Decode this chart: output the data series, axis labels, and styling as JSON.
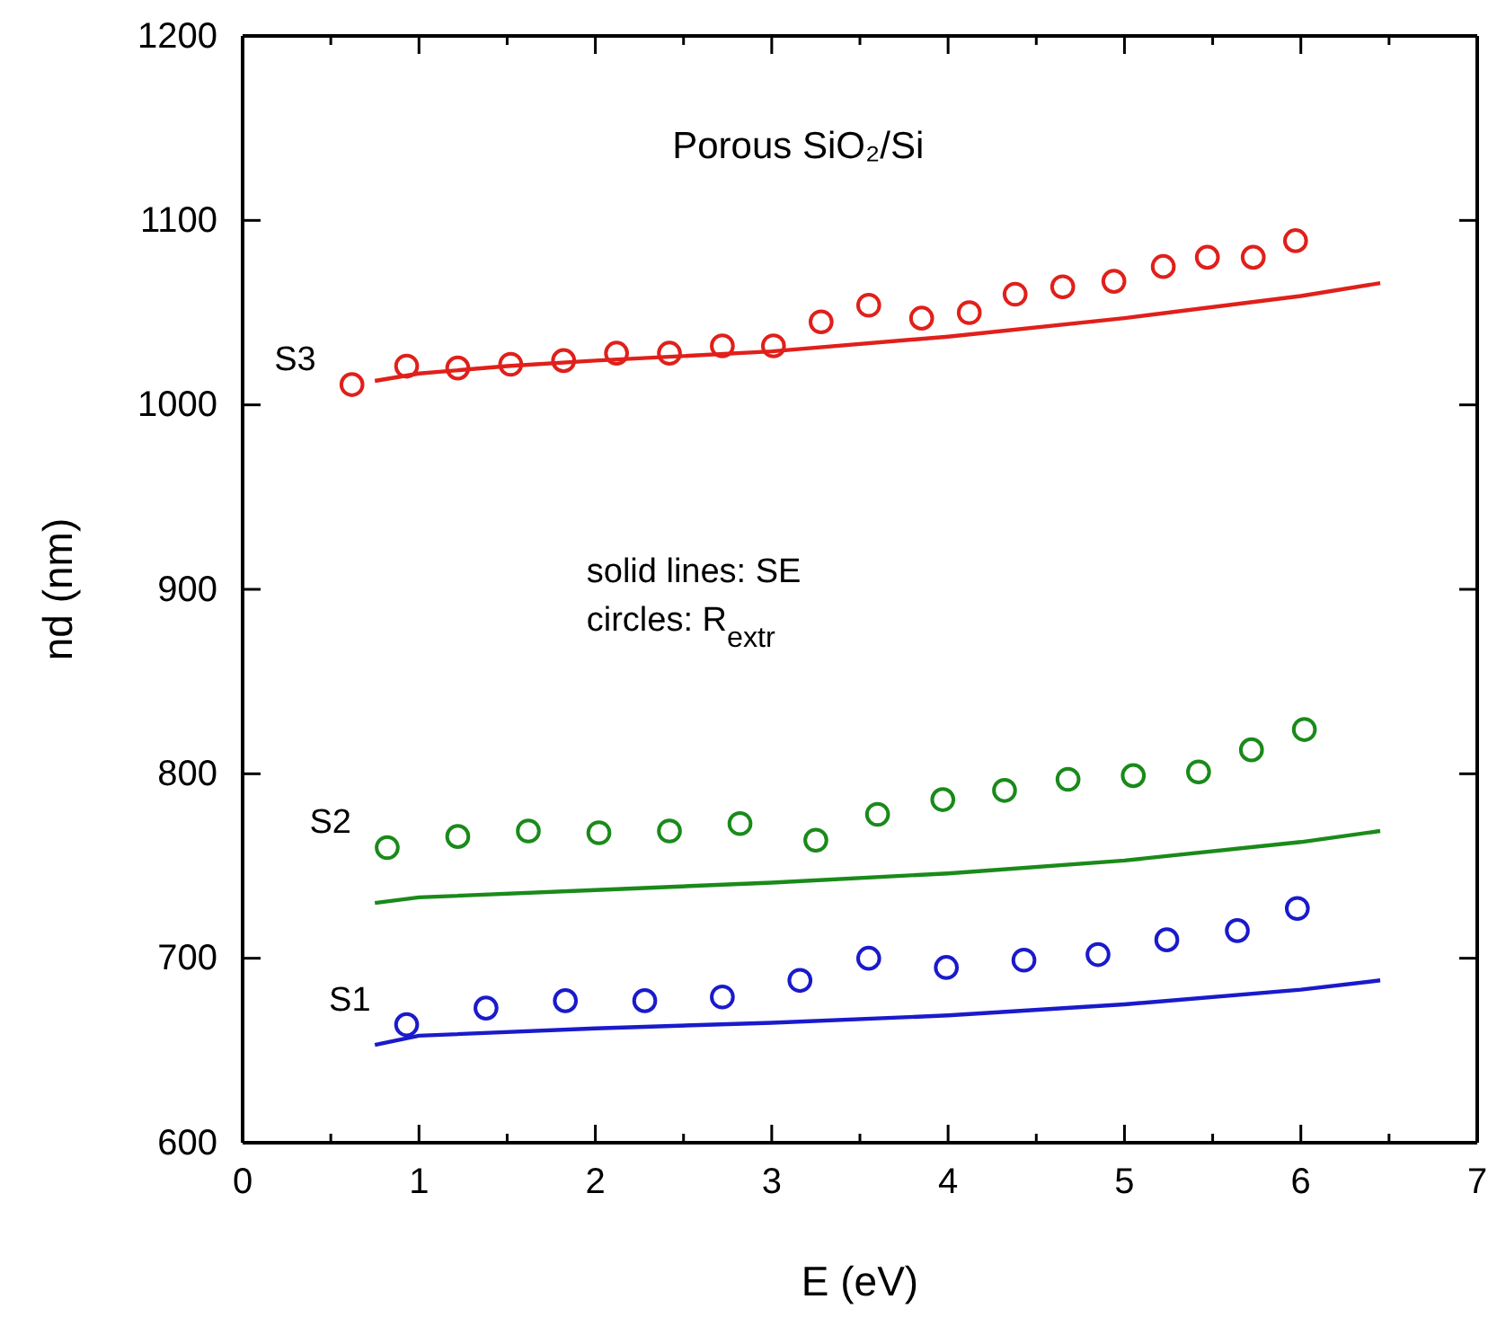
{
  "chart_data": {
    "type": "line",
    "title": "Porous SiO₂/Si",
    "xlabel": "E (eV)",
    "ylabel": "nd (nm)",
    "xlim": [
      0,
      7
    ],
    "ylim": [
      600,
      1200
    ],
    "xticks": [
      0,
      {
        "value": 0.5,
        "label": null
      },
      1,
      {
        "value": 1.5,
        "label": null
      },
      2,
      {
        "value": 2.5,
        "label": null
      },
      3,
      {
        "value": 3.5,
        "label": null
      },
      4,
      {
        "value": 4.5,
        "label": null
      },
      5,
      {
        "value": 5.5,
        "label": null
      },
      6,
      {
        "value": 6.5,
        "label": null
      },
      7
    ],
    "yticks": [
      600,
      700,
      800,
      900,
      1000,
      1100,
      1200
    ],
    "grid": false,
    "legend": false,
    "line_style": "solid",
    "annotations": [
      "solid lines: SE",
      "circles: R$_{extr}$"
    ],
    "series": [
      {
        "type": "scatter",
        "name": "S3",
        "color": "#e0201b",
        "marker": "circle",
        "x": [
          0.62,
          0.93,
          1.22,
          1.52,
          1.82,
          2.12,
          2.42,
          2.72,
          3.01,
          3.28,
          3.55,
          3.85,
          4.12,
          4.38,
          4.65,
          4.94,
          5.22,
          5.47,
          5.73,
          5.97
        ],
        "values": [
          1011,
          1021,
          1020,
          1022,
          1024,
          1028,
          1028,
          1032,
          1032,
          1045,
          1054,
          1047,
          1050,
          1060,
          1064,
          1067,
          1075,
          1080,
          1080,
          1089
        ]
      },
      {
        "color": "#e0201b",
        "x": [
          0.75,
          1.0,
          1.5,
          2,
          3,
          4,
          5,
          6,
          6.45
        ],
        "values": [
          1013,
          1017,
          1021,
          1024,
          1029,
          1037,
          1047,
          1059,
          1066
        ]
      },
      {
        "type": "scatter",
        "name": "S2",
        "color": "#1a8a1a",
        "marker": "circle",
        "x": [
          0.82,
          1.22,
          1.62,
          2.02,
          2.42,
          2.82,
          3.25,
          3.6,
          3.97,
          4.32,
          4.68,
          5.05,
          5.42,
          5.72,
          6.02
        ],
        "values": [
          760,
          766,
          769,
          768,
          769,
          773,
          764,
          778,
          786,
          791,
          797,
          799,
          801,
          813,
          824
        ]
      },
      {
        "color": "#1a8a1a",
        "x": [
          0.75,
          1.0,
          2,
          3,
          4,
          5,
          6,
          6.45
        ],
        "values": [
          730,
          733,
          737,
          741,
          746,
          753,
          763,
          769
        ]
      },
      {
        "type": "scatter",
        "name": "S1",
        "color": "#1a1acc",
        "marker": "circle",
        "x": [
          0.93,
          1.38,
          1.83,
          2.28,
          2.72,
          3.16,
          3.55,
          3.99,
          4.43,
          4.85,
          5.24,
          5.64,
          5.98
        ],
        "values": [
          664,
          673,
          677,
          677,
          679,
          688,
          700,
          695,
          699,
          702,
          710,
          715,
          727
        ]
      },
      {
        "color": "#1a1acc",
        "x": [
          0.75,
          1.0,
          2,
          3,
          4,
          5,
          6,
          6.45
        ],
        "values": [
          653,
          658,
          662,
          665,
          669,
          675,
          683,
          688
        ]
      }
    ]
  }
}
